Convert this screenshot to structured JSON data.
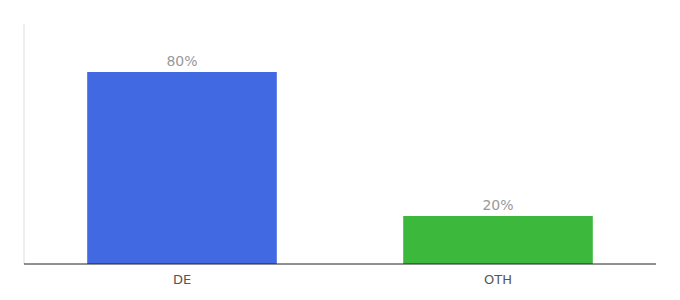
{
  "chart_data": {
    "type": "bar",
    "categories": [
      "DE",
      "OTH"
    ],
    "values": [
      80,
      20
    ],
    "value_labels": [
      "80%",
      "20%"
    ],
    "colors": [
      "#4169e1",
      "#3cb83c"
    ],
    "ylim": [
      0,
      100
    ],
    "data_labels": true,
    "tick_labels": "x",
    "grid": false
  }
}
